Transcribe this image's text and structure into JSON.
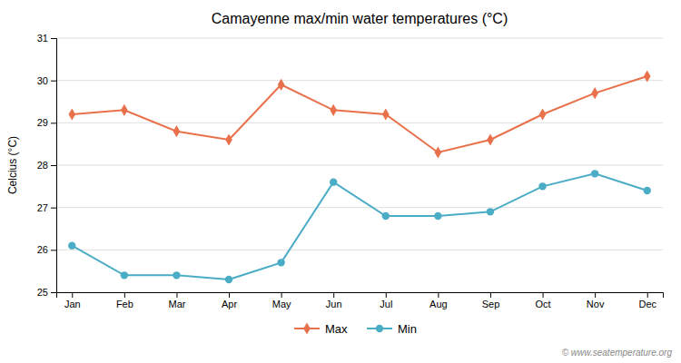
{
  "chart_data": {
    "type": "line",
    "title": "Camayenne max/min water temperatures (°C)",
    "ylabel": "Celcius (°C)",
    "categories": [
      "Jan",
      "Feb",
      "Mar",
      "Apr",
      "May",
      "Jun",
      "Jul",
      "Aug",
      "Sep",
      "Oct",
      "Nov",
      "Dec"
    ],
    "series": [
      {
        "name": "Max",
        "color": "#e8704a",
        "marker": "diamond",
        "values": [
          29.2,
          29.3,
          28.8,
          28.6,
          29.9,
          29.3,
          29.2,
          28.3,
          28.6,
          29.2,
          29.7,
          30.1
        ]
      },
      {
        "name": "Min",
        "color": "#4bacc6",
        "marker": "circle",
        "values": [
          26.1,
          25.4,
          25.4,
          25.3,
          25.7,
          27.6,
          26.8,
          26.8,
          26.9,
          27.5,
          27.8,
          27.4
        ]
      }
    ],
    "ylim": [
      25,
      31
    ],
    "yticks": [
      25,
      26,
      27,
      28,
      29,
      30,
      31
    ],
    "grid": true,
    "legend": "bottom",
    "annotations": [
      "© www.seatemperature.org"
    ]
  }
}
